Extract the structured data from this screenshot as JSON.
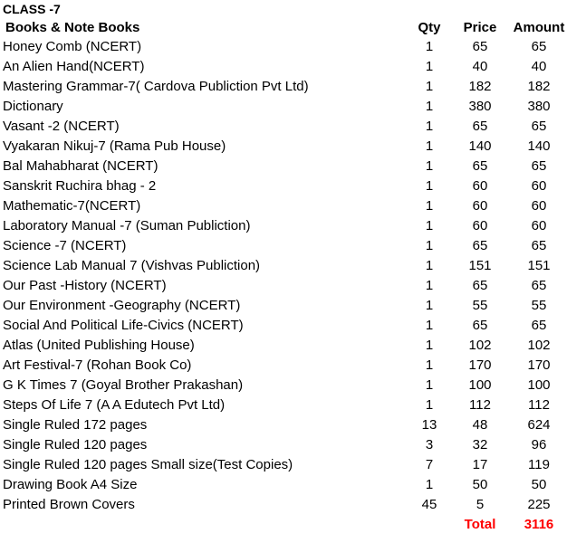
{
  "class_title": "CLASS -7",
  "headers": {
    "item": "Books & Note Books",
    "qty": "Qty",
    "price": "Price",
    "amount": "Amount"
  },
  "rows": [
    {
      "item": "Honey Comb (NCERT)",
      "qty": "1",
      "price": "65",
      "amount": "65"
    },
    {
      "item": "An Alien Hand(NCERT)",
      "qty": "1",
      "price": "40",
      "amount": "40"
    },
    {
      "item": "Mastering Grammar-7( Cardova Publiction Pvt Ltd)",
      "qty": "1",
      "price": "182",
      "amount": "182"
    },
    {
      "item": "Dictionary",
      "qty": "1",
      "price": "380",
      "amount": "380"
    },
    {
      "item": "Vasant -2 (NCERT)",
      "qty": "1",
      "price": "65",
      "amount": "65"
    },
    {
      "item": "Vyakaran Nikuj-7 (Rama Pub House)",
      "qty": "1",
      "price": "140",
      "amount": "140"
    },
    {
      "item": "Bal Mahabharat (NCERT)",
      "qty": "1",
      "price": "65",
      "amount": "65"
    },
    {
      "item": "Sanskrit Ruchira bhag - 2",
      "qty": "1",
      "price": "60",
      "amount": "60"
    },
    {
      "item": "Mathematic-7(NCERT)",
      "qty": "1",
      "price": "60",
      "amount": "60"
    },
    {
      "item": "Laboratory Manual -7 (Suman Publiction)",
      "qty": "1",
      "price": "60",
      "amount": "60"
    },
    {
      "item": "Science -7 (NCERT)",
      "qty": "1",
      "price": "65",
      "amount": "65"
    },
    {
      "item": "Science Lab Manual 7 (Vishvas Publiction)",
      "qty": "1",
      "price": "151",
      "amount": "151"
    },
    {
      "item": "Our Past -History  (NCERT)",
      "qty": "1",
      "price": "65",
      "amount": "65"
    },
    {
      "item": "Our Environment -Geography  (NCERT)",
      "qty": "1",
      "price": "55",
      "amount": "55"
    },
    {
      "item": "Social And Political Life-Civics   (NCERT)",
      "qty": "1",
      "price": "65",
      "amount": "65"
    },
    {
      "item": "Atlas (United Publishing House)",
      "qty": "1",
      "price": "102",
      "amount": "102"
    },
    {
      "item": "Art Festival-7 (Rohan Book Co)",
      "qty": "1",
      "price": "170",
      "amount": "170"
    },
    {
      "item": "G K Times 7 (Goyal Brother Prakashan)",
      "qty": "1",
      "price": "100",
      "amount": "100"
    },
    {
      "item": "Steps Of Life 7 (A A Edutech Pvt Ltd)",
      "qty": "1",
      "price": "112",
      "amount": "112"
    },
    {
      "item": "Single  Ruled  172 pages",
      "qty": "13",
      "price": "48",
      "amount": "624"
    },
    {
      "item": "Single  Ruled  120 pages",
      "qty": "3",
      "price": "32",
      "amount": "96"
    },
    {
      "item": "Single  Ruled  120 pages Small size(Test Copies)",
      "qty": "7",
      "price": "17",
      "amount": "119"
    },
    {
      "item": "Drawing Book A4 Size",
      "qty": "1",
      "price": "50",
      "amount": "50"
    },
    {
      "item": "Printed Brown Covers",
      "qty": "45",
      "price": "5",
      "amount": "225"
    }
  ],
  "total": {
    "label": "Total",
    "value": "3116",
    "color": "#FF0000"
  }
}
